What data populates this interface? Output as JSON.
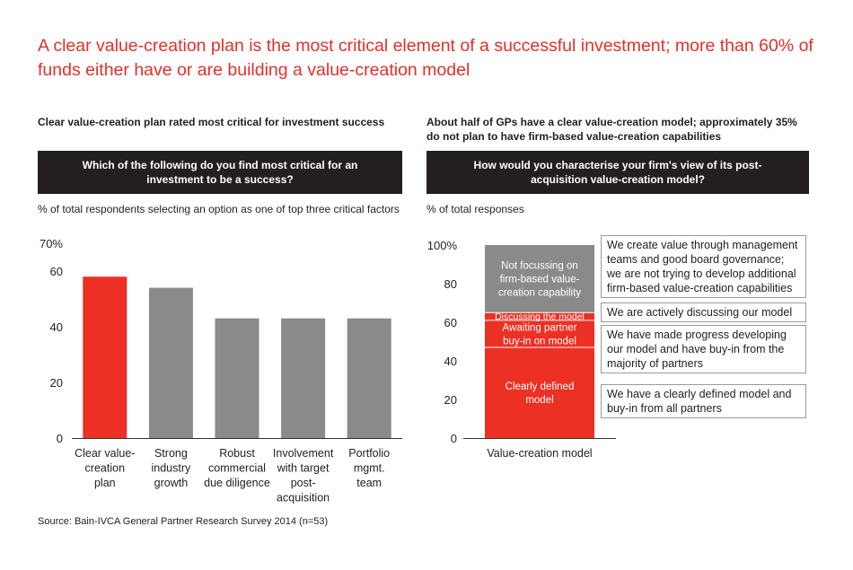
{
  "headline": "A clear value-creation plan is the most critical element of a successful investment; more than 60% of funds either have or are building a value-creation model",
  "left_panel": {
    "subtitle": "Clear value-creation plan rated most critical for investment success",
    "question": "Which of the following do you find most critical for an investment to be a success?",
    "unit_label": "% of total respondents selecting an option as one of top three critical factors"
  },
  "right_panel": {
    "subtitle": "About half of GPs have a clear value-creation model; approximately 35% do not plan to have firm-based value-creation capabilities",
    "question": "How would you characterise your firm's view of its post-acquisition value-creation model?",
    "unit_label": "% of total responses"
  },
  "source": "Source: Bain-IVCA General Partner Research Survey 2014 (n=53)",
  "colors": {
    "red": "#ed3024",
    "gray": "#8a8a8a",
    "dark": "#231f20",
    "headline": "#e4302a"
  },
  "chart_data": [
    {
      "type": "bar",
      "title": "Which of the following do you find most critical for an investment to be a success?",
      "ylabel": "% of total respondents selecting an option as one of top three critical factors",
      "ylim": [
        0,
        70
      ],
      "yticks": [
        0,
        20,
        40,
        60
      ],
      "ytick_labels": [
        "0",
        "20",
        "40",
        "60",
        "70%"
      ],
      "ytick_values": [
        0,
        20,
        40,
        60,
        70
      ],
      "categories": [
        [
          "Clear value-",
          "creation",
          "plan"
        ],
        [
          "Strong",
          "industry",
          "growth"
        ],
        [
          "Robust",
          "commercial",
          "due diligence"
        ],
        [
          "Involvement",
          "with target",
          "post-",
          "acquisition"
        ],
        [
          "Portfolio",
          "mgmt.",
          "team"
        ]
      ],
      "values": [
        58,
        54,
        43,
        43,
        43
      ],
      "highlight_index": 0
    },
    {
      "type": "bar",
      "subtype": "stacked-100",
      "title": "How would you characterise your firm's view of its post-acquisition value-creation model?",
      "ylabel": "% of total responses",
      "ylim": [
        0,
        100
      ],
      "ytick_labels": [
        "0",
        "20",
        "40",
        "60",
        "80",
        "100%"
      ],
      "ytick_values": [
        0,
        20,
        40,
        60,
        80,
        100
      ],
      "category": "Value-creation model",
      "segments": [
        {
          "label": [
            "Clearly defined",
            "model"
          ],
          "value": 47,
          "color": "red",
          "annotation": "We have a clearly defined model and buy-in from all partners"
        },
        {
          "label": [
            "Awaiting partner",
            "buy-in on model"
          ],
          "value": 14,
          "color": "red",
          "annotation": "We have made progress developing our model and have buy-in from the majority of partners"
        },
        {
          "label": [
            "Discussing the model"
          ],
          "value": 4,
          "color": "red",
          "annotation": "We are actively discussing our model"
        },
        {
          "label": [
            "Not focussing on",
            "firm-based value-",
            "creation capability"
          ],
          "value": 35,
          "color": "gray",
          "annotation": "We create value through management teams and good board governance; we are not trying to develop additional firm-based value-creation capabilities"
        }
      ]
    }
  ]
}
